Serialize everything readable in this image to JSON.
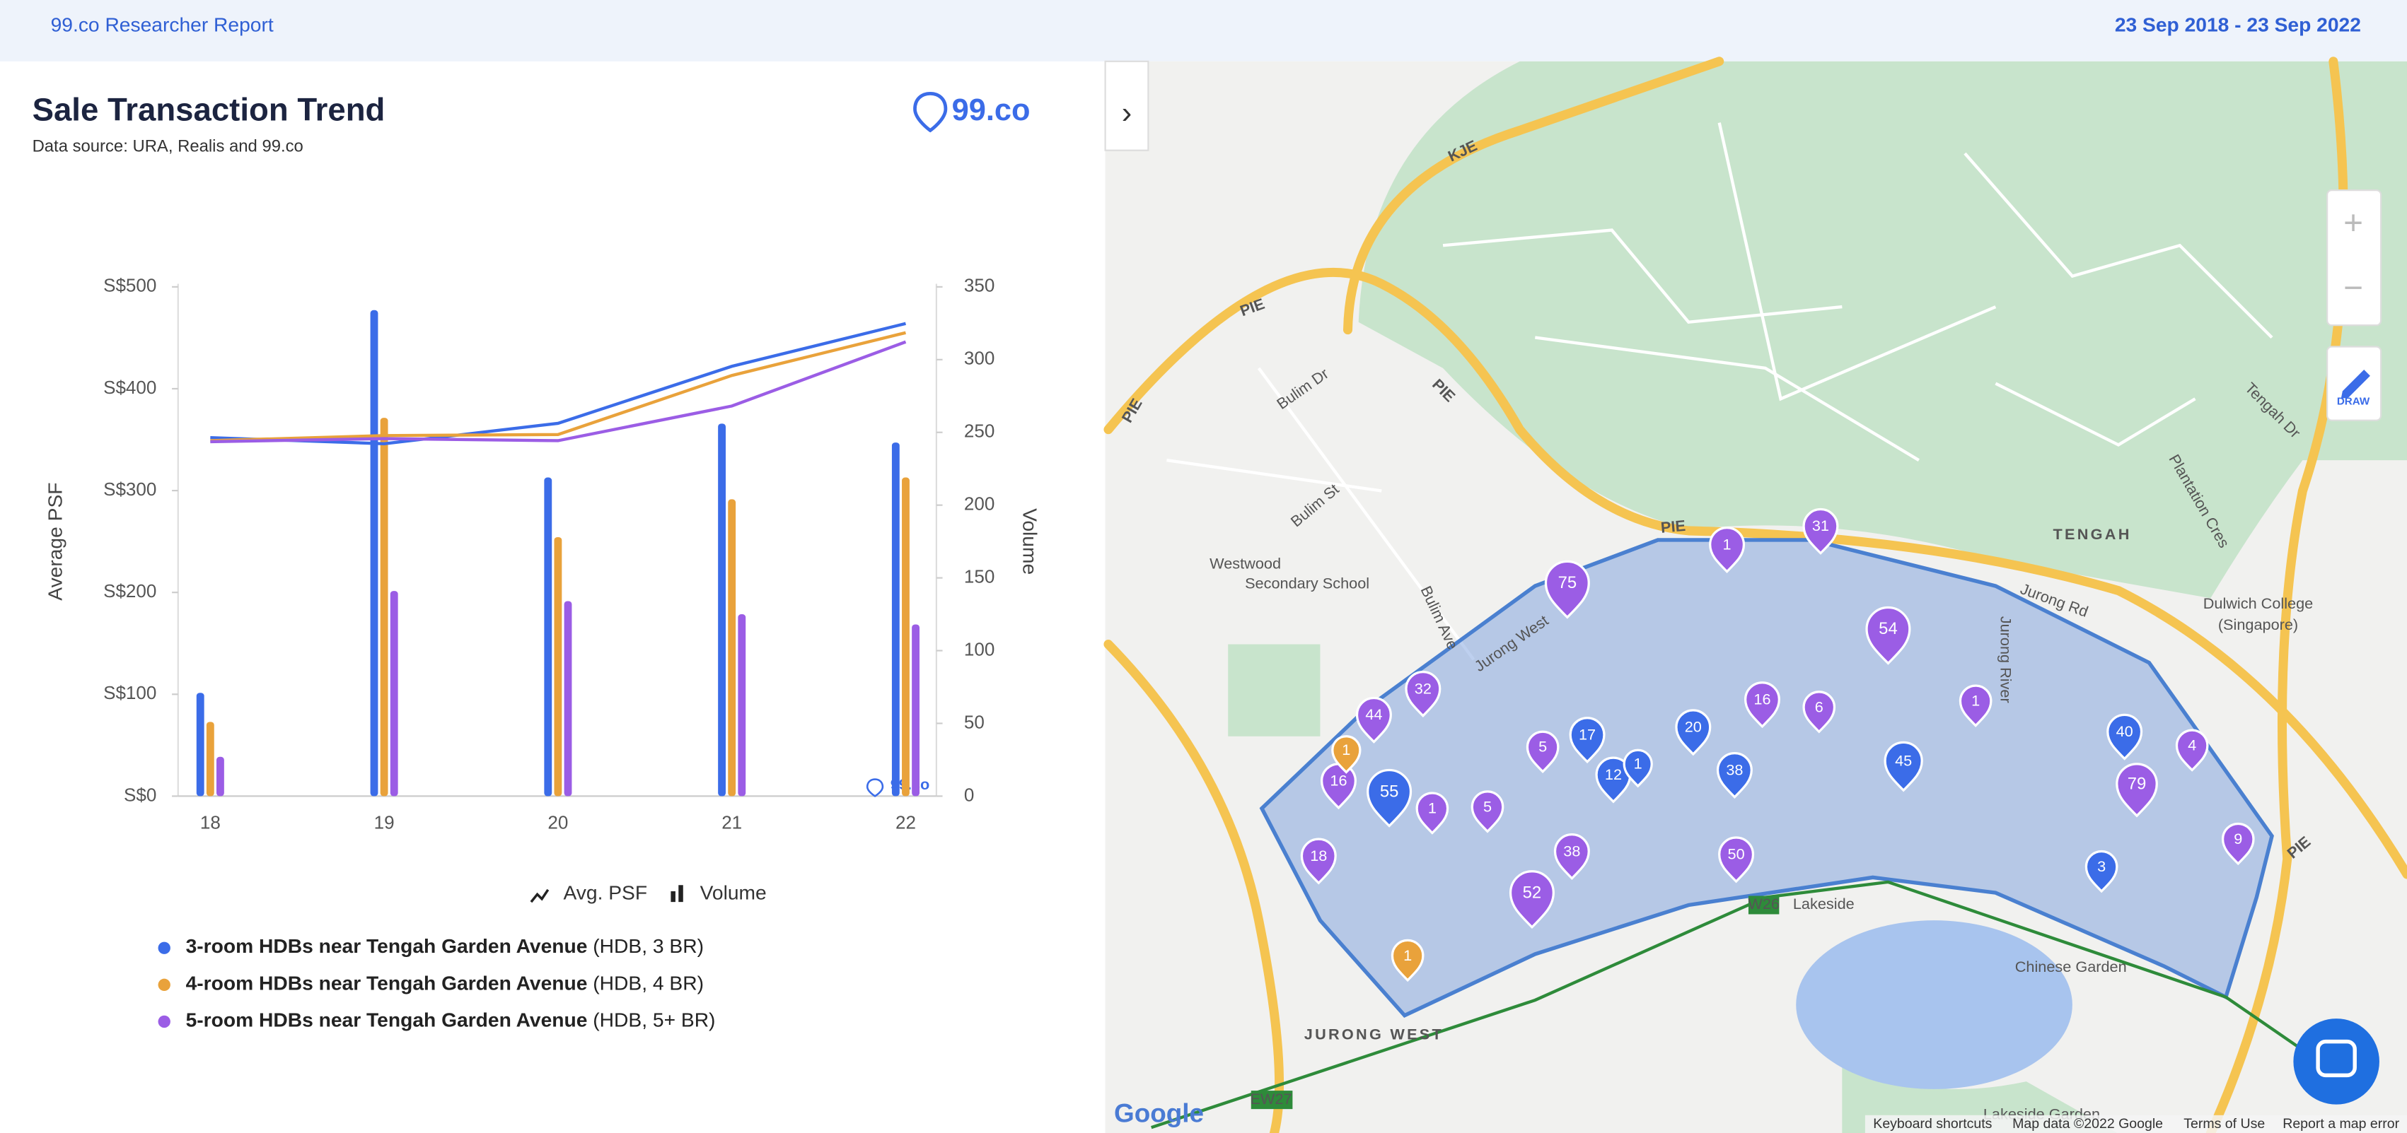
{
  "header": {
    "title": "99.co Researcher Report",
    "date_range": "23 Sep 2018 - 23 Sep 2022"
  },
  "logo": "99.co",
  "chart_data": {
    "type": "bar-line",
    "title": "Sale Transaction Trend",
    "subtitle": "Data source: URA, Realis and 99.co",
    "categories": [
      "18",
      "19",
      "20",
      "21",
      "22"
    ],
    "ylabel": "Average PSF",
    "y2label": "Volume",
    "ylim": [
      0,
      500
    ],
    "yticks": [
      {
        "value": 0,
        "label": "S$0"
      },
      {
        "value": 100,
        "label": "S$100"
      },
      {
        "value": 200,
        "label": "S$200"
      },
      {
        "value": 300,
        "label": "S$300"
      },
      {
        "value": 400,
        "label": "S$400"
      },
      {
        "value": 500,
        "label": "S$500"
      }
    ],
    "y2lim": [
      0,
      350
    ],
    "y2ticks": [
      0,
      50,
      100,
      150,
      200,
      250,
      300,
      350
    ],
    "type_legend": {
      "line": "Avg. PSF",
      "bar": "Volume"
    },
    "series": [
      {
        "name": "3-room HDBs near Tengah Garden Avenue",
        "detail": "(HDB, 3 BR)",
        "color": "#3b6ce8",
        "psf": [
          352,
          346,
          366,
          422,
          464
        ],
        "volume": [
          71,
          334,
          219,
          256,
          243
        ]
      },
      {
        "name": "4-room HDBs near Tengah Garden Avenue",
        "detail": "(HDB, 4 BR)",
        "color": "#e9a23b",
        "psf": [
          349,
          354,
          355,
          413,
          455
        ],
        "volume": [
          51,
          260,
          178,
          204,
          219
        ]
      },
      {
        "name": "5-room HDBs near Tengah Garden Avenue",
        "detail": "(HDB, 5+ BR)",
        "color": "#9b5de5",
        "psf": [
          348,
          351,
          349,
          383,
          446
        ],
        "volume": [
          27,
          141,
          134,
          125,
          118
        ]
      }
    ]
  },
  "map": {
    "labels": [
      "KJE",
      "PIE",
      "PIE",
      "PIE",
      "PIE",
      "PIE",
      "Bulim Dr",
      "Bulim St",
      "Bulim Ave",
      "Westwood",
      "Secondary School",
      "Jurong West",
      "Jurong River",
      "Jurong Rd",
      "TENGAH",
      "Plantation Cres",
      "Tengah Dr",
      "Dulwich College",
      "(Singapore)",
      "Lakeside",
      "W26",
      "Chinese Garden",
      "JURONG WEST",
      "EW27",
      "Lakeside Garden"
    ],
    "pins": [
      {
        "label": "75",
        "color": "#9b5de5"
      },
      {
        "label": "1",
        "color": "#9b5de5"
      },
      {
        "label": "31",
        "color": "#9b5de5"
      },
      {
        "label": "54",
        "color": "#9b5de5"
      },
      {
        "label": "32",
        "color": "#9b5de5"
      },
      {
        "label": "44",
        "color": "#9b5de5"
      },
      {
        "label": "16",
        "color": "#9b5de5"
      },
      {
        "label": "6",
        "color": "#9b5de5"
      },
      {
        "label": "1",
        "color": "#9b5de5"
      },
      {
        "label": "4",
        "color": "#9b5de5"
      },
      {
        "label": "16",
        "color": "#9b5de5"
      },
      {
        "label": "1",
        "color": "#9b5de5"
      },
      {
        "label": "5",
        "color": "#9b5de5"
      },
      {
        "label": "5",
        "color": "#9b5de5"
      },
      {
        "label": "79",
        "color": "#9b5de5"
      },
      {
        "label": "9",
        "color": "#9b5de5"
      },
      {
        "label": "18",
        "color": "#9b5de5"
      },
      {
        "label": "38",
        "color": "#9b5de5"
      },
      {
        "label": "52",
        "color": "#9b5de5"
      },
      {
        "label": "50",
        "color": "#9b5de5"
      },
      {
        "label": "17",
        "color": "#3b6ce8"
      },
      {
        "label": "12",
        "color": "#3b6ce8"
      },
      {
        "label": "1",
        "color": "#3b6ce8"
      },
      {
        "label": "20",
        "color": "#3b6ce8"
      },
      {
        "label": "38",
        "color": "#3b6ce8"
      },
      {
        "label": "45",
        "color": "#3b6ce8"
      },
      {
        "label": "40",
        "color": "#3b6ce8"
      },
      {
        "label": "55",
        "color": "#3b6ce8"
      },
      {
        "label": "3",
        "color": "#3b6ce8"
      },
      {
        "label": "1",
        "color": "#e9a23b"
      },
      {
        "label": "1",
        "color": "#e9a23b"
      }
    ],
    "brand": "Google",
    "zoom_in": "+",
    "zoom_out": "−",
    "draw": "DRAW",
    "expand": "›",
    "footer": [
      "Keyboard shortcuts",
      "Map data ©2022 Google",
      "Terms of Use",
      "Report a map error"
    ]
  }
}
